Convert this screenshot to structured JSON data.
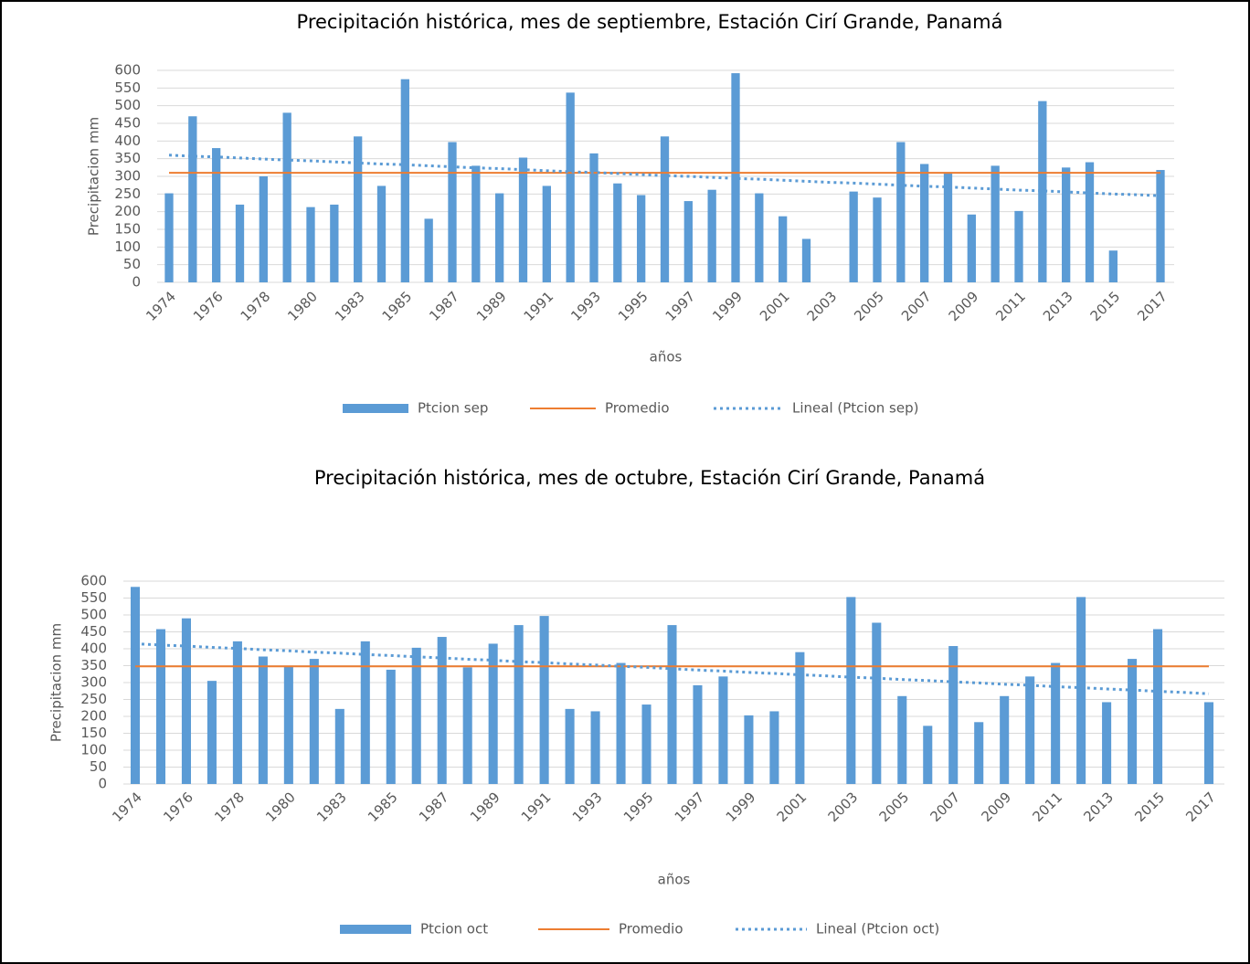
{
  "chart_data": [
    {
      "type": "bar",
      "title": "Precipitación histórica, mes de septiembre, Estación Cirí Grande, Panamá",
      "x_label": "años",
      "y_label": "Precipitacion mm",
      "categories": [
        "1974",
        null,
        "1976",
        null,
        "1978",
        null,
        "1980",
        null,
        "1983",
        null,
        "1985",
        null,
        "1987",
        null,
        "1989",
        null,
        "1991",
        null,
        "1993",
        null,
        "1995",
        null,
        "1997",
        null,
        "1999",
        null,
        "2001",
        null,
        "2003",
        null,
        "2005",
        null,
        "2007",
        null,
        "2009",
        null,
        "2011",
        null,
        "2013",
        null,
        "2015",
        null,
        "2017"
      ],
      "series": [
        {
          "name": "Ptcion sep",
          "type": "bar",
          "color": "#5b9bd5",
          "values": [
            252,
            470,
            380,
            220,
            300,
            480,
            213,
            220,
            413,
            273,
            575,
            180,
            397,
            330,
            252,
            353,
            273,
            537,
            365,
            280,
            247,
            413,
            230,
            262,
            592,
            252,
            187,
            123,
            null,
            257,
            240,
            397,
            335,
            312,
            192,
            330,
            202,
            513,
            325,
            340,
            90,
            null,
            318
          ]
        },
        {
          "name": "Promedio",
          "type": "line",
          "color": "#ed7d31",
          "values": [
            310,
            310,
            310,
            310,
            310,
            310,
            310,
            310,
            310,
            310,
            310,
            310,
            310,
            310,
            310,
            310,
            310,
            310,
            310,
            310,
            310,
            310,
            310,
            310,
            310,
            310,
            310,
            310,
            310,
            310,
            310,
            310,
            310,
            310,
            310,
            310,
            310,
            310,
            310,
            310,
            310,
            310,
            310
          ]
        },
        {
          "name": "Lineal (Ptcion sep)",
          "type": "line",
          "dash": "dotted",
          "color": "#5b9bd5",
          "values": [
            360,
            357,
            355,
            352,
            349,
            346,
            344,
            341,
            338,
            335,
            333,
            330,
            327,
            324,
            322,
            319,
            316,
            313,
            311,
            308,
            305,
            302,
            300,
            297,
            294,
            292,
            289,
            286,
            283,
            281,
            278,
            275,
            272,
            270,
            267,
            264,
            261,
            259,
            256,
            253,
            250,
            248,
            245
          ]
        }
      ],
      "ylim": [
        0,
        600
      ],
      "yticks": [
        0,
        50,
        100,
        150,
        200,
        250,
        300,
        350,
        400,
        450,
        500,
        550,
        600
      ],
      "grid": true,
      "legend": "bottom"
    },
    {
      "type": "bar",
      "title": "Precipitación histórica, mes de octubre, Estación Cirí Grande, Panamá",
      "x_label": "años",
      "y_label": "Precipitacion mm",
      "categories": [
        "1974",
        null,
        "1976",
        null,
        "1978",
        null,
        "1980",
        null,
        "1983",
        null,
        "1985",
        null,
        "1987",
        null,
        "1989",
        null,
        "1991",
        null,
        "1993",
        null,
        "1995",
        null,
        "1997",
        null,
        "1999",
        null,
        "2001",
        null,
        "2003",
        null,
        "2005",
        null,
        "2007",
        null,
        "2009",
        null,
        "2011",
        null,
        "2013",
        null,
        "2015",
        null,
        "2017"
      ],
      "series": [
        {
          "name": "Ptcion oct",
          "type": "bar",
          "color": "#5b9bd5",
          "values": [
            583,
            458,
            490,
            305,
            422,
            377,
            350,
            370,
            222,
            422,
            338,
            403,
            435,
            345,
            415,
            470,
            497,
            222,
            215,
            358,
            235,
            470,
            292,
            318,
            203,
            215,
            390,
            null,
            553,
            477,
            260,
            172,
            408,
            183,
            260,
            318,
            358,
            553,
            242,
            370,
            458,
            null,
            242
          ]
        },
        {
          "name": "Promedio",
          "type": "line",
          "color": "#ed7d31",
          "values": [
            348,
            348,
            348,
            348,
            348,
            348,
            348,
            348,
            348,
            348,
            348,
            348,
            348,
            348,
            348,
            348,
            348,
            348,
            348,
            348,
            348,
            348,
            348,
            348,
            348,
            348,
            348,
            348,
            348,
            348,
            348,
            348,
            348,
            348,
            348,
            348,
            348,
            348,
            348,
            348,
            348,
            348,
            348
          ]
        },
        {
          "name": "Lineal (Ptcion oct)",
          "type": "line",
          "dash": "dotted",
          "color": "#5b9bd5",
          "values": [
            415,
            411,
            408,
            404,
            401,
            397,
            394,
            390,
            387,
            383,
            380,
            376,
            373,
            369,
            366,
            362,
            359,
            355,
            352,
            348,
            345,
            341,
            337,
            334,
            330,
            327,
            323,
            320,
            316,
            313,
            309,
            306,
            302,
            299,
            295,
            292,
            288,
            285,
            281,
            278,
            274,
            271,
            267
          ]
        }
      ],
      "ylim": [
        0,
        600
      ],
      "yticks": [
        0,
        50,
        100,
        150,
        200,
        250,
        300,
        350,
        400,
        450,
        500,
        550,
        600
      ],
      "grid": true,
      "legend": "bottom"
    }
  ]
}
